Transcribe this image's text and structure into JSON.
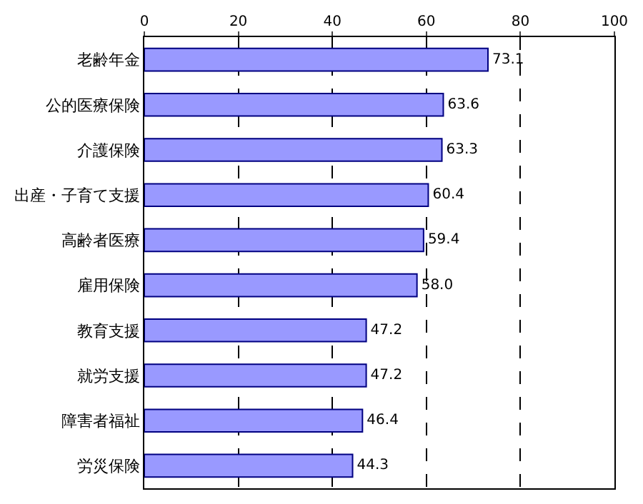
{
  "chart_data": {
    "type": "bar",
    "orientation": "horizontal",
    "categories": [
      "老齢年金",
      "公的医療保険",
      "介護保険",
      "出産・子育て支援",
      "高齢者医療",
      "雇用保険",
      "教育支援",
      "就労支援",
      "障害者福祉",
      "労災保険"
    ],
    "values": [
      73.1,
      63.6,
      63.3,
      60.4,
      59.4,
      58.0,
      47.2,
      47.2,
      46.4,
      44.3
    ],
    "value_labels": [
      "73.1",
      "63.6",
      "63.3",
      "60.4",
      "59.4",
      "58.0",
      "47.2",
      "47.2",
      "46.4",
      "44.3"
    ],
    "color": "#9999ff",
    "xlim": [
      0,
      100
    ],
    "xticks": [
      0,
      20,
      40,
      60,
      80,
      100
    ],
    "grid": "x",
    "line_style": "dashed",
    "legend": false
  }
}
